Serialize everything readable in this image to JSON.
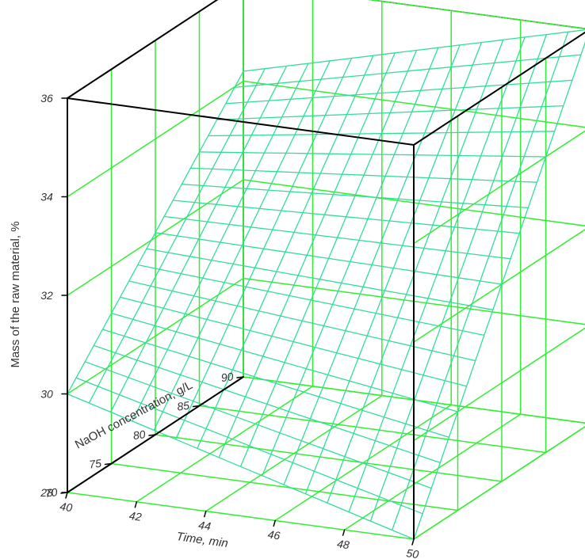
{
  "chart_data": {
    "type": "surface3d",
    "title": "",
    "x_axis": {
      "label": "Time, min",
      "ticks": [
        "40",
        "42",
        "44",
        "46",
        "48",
        "50"
      ],
      "range": [
        40,
        50
      ]
    },
    "y_axis": {
      "label": "NaOH concentration, g/L",
      "ticks": [
        "70",
        "75",
        "80",
        "85",
        "90"
      ],
      "range": [
        70,
        90
      ]
    },
    "z_axis": {
      "label": "Mass of the raw material, %",
      "ticks": [
        "28",
        "30",
        "32",
        "34",
        "36"
      ],
      "range": [
        28,
        36
      ]
    },
    "grid": true,
    "surface_corners": [
      {
        "x": 40,
        "y": 70,
        "z": 30.0
      },
      {
        "x": 50,
        "y": 70,
        "z": 28.0
      },
      {
        "x": 40,
        "y": 90,
        "z": 34.2
      },
      {
        "x": 50,
        "y": 90,
        "z": 36.0
      }
    ],
    "surface_grid": {
      "x_steps": 16,
      "y_steps": 20
    },
    "colors": {
      "box": "#000000",
      "grid": "#33ee33",
      "surface": "#33dd99"
    }
  }
}
